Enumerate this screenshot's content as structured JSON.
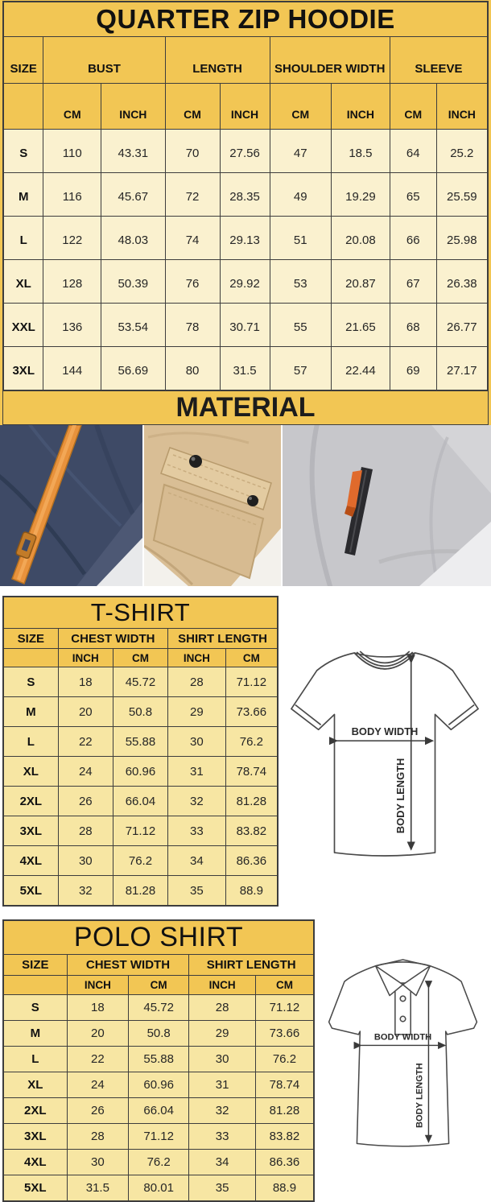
{
  "hoodie": {
    "title": "QUARTER ZIP HOODIE",
    "size_col_label": "SIZE",
    "groups": [
      "BUST",
      "LENGTH",
      "SHOULDER WIDTH",
      "SLEEVE"
    ],
    "units": [
      "CM",
      "INCH",
      "CM",
      "INCH",
      "CM",
      "INCH",
      "CM",
      "INCH"
    ],
    "rows": [
      {
        "size": "S",
        "cells": [
          "110",
          "43.31",
          "70",
          "27.56",
          "47",
          "18.5",
          "64",
          "25.2"
        ]
      },
      {
        "size": "M",
        "cells": [
          "116",
          "45.67",
          "72",
          "28.35",
          "49",
          "19.29",
          "65",
          "25.59"
        ]
      },
      {
        "size": "L",
        "cells": [
          "122",
          "48.03",
          "74",
          "29.13",
          "51",
          "20.08",
          "66",
          "25.98"
        ]
      },
      {
        "size": "XL",
        "cells": [
          "128",
          "50.39",
          "76",
          "29.92",
          "53",
          "20.87",
          "67",
          "26.38"
        ]
      },
      {
        "size": "XXL",
        "cells": [
          "136",
          "53.54",
          "78",
          "30.71",
          "55",
          "21.65",
          "68",
          "26.77"
        ]
      },
      {
        "size": "3XL",
        "cells": [
          "144",
          "56.69",
          "80",
          "31.5",
          "57",
          "22.44",
          "69",
          "27.17"
        ]
      }
    ]
  },
  "material": {
    "title": "MATERIAL",
    "photos": [
      {
        "name": "navy fleece with orange drawstring"
      },
      {
        "name": "khaki sleeve flap pocket with snaps"
      },
      {
        "name": "gray fleece with zip pocket and orange pull"
      }
    ]
  },
  "tshirt": {
    "title": "T-SHIRT",
    "size_col_label": "SIZE",
    "groups": [
      "CHEST WIDTH",
      "SHIRT LENGTH"
    ],
    "units": [
      "INCH",
      "CM",
      "INCH",
      "CM"
    ],
    "rows": [
      {
        "size": "S",
        "cells": [
          "18",
          "45.72",
          "28",
          "71.12"
        ]
      },
      {
        "size": "M",
        "cells": [
          "20",
          "50.8",
          "29",
          "73.66"
        ]
      },
      {
        "size": "L",
        "cells": [
          "22",
          "55.88",
          "30",
          "76.2"
        ]
      },
      {
        "size": "XL",
        "cells": [
          "24",
          "60.96",
          "31",
          "78.74"
        ]
      },
      {
        "size": "2XL",
        "cells": [
          "26",
          "66.04",
          "32",
          "81.28"
        ]
      },
      {
        "size": "3XL",
        "cells": [
          "28",
          "71.12",
          "33",
          "83.82"
        ]
      },
      {
        "size": "4XL",
        "cells": [
          "30",
          "76.2",
          "34",
          "86.36"
        ]
      },
      {
        "size": "5XL",
        "cells": [
          "32",
          "81.28",
          "35",
          "88.9"
        ]
      }
    ],
    "diagram": {
      "width_label": "BODY WIDTH",
      "length_label": "BODY LENGTH"
    }
  },
  "polo": {
    "title": "POLO SHIRT",
    "size_col_label": "SIZE",
    "groups": [
      "CHEST WIDTH",
      "SHIRT LENGTH"
    ],
    "units": [
      "INCH",
      "CM",
      "INCH",
      "CM"
    ],
    "rows": [
      {
        "size": "S",
        "cells": [
          "18",
          "45.72",
          "28",
          "71.12"
        ]
      },
      {
        "size": "M",
        "cells": [
          "20",
          "50.8",
          "29",
          "73.66"
        ]
      },
      {
        "size": "L",
        "cells": [
          "22",
          "55.88",
          "30",
          "76.2"
        ]
      },
      {
        "size": "XL",
        "cells": [
          "24",
          "60.96",
          "31",
          "78.74"
        ]
      },
      {
        "size": "2XL",
        "cells": [
          "26",
          "66.04",
          "32",
          "81.28"
        ]
      },
      {
        "size": "3XL",
        "cells": [
          "28",
          "71.12",
          "33",
          "83.82"
        ]
      },
      {
        "size": "4XL",
        "cells": [
          "30",
          "76.2",
          "34",
          "86.36"
        ]
      },
      {
        "size": "5XL",
        "cells": [
          "31.5",
          "80.01",
          "35",
          "88.9"
        ]
      }
    ],
    "diagram": {
      "width_label": "BODY WIDTH",
      "length_label": "BODY LENGTH"
    }
  },
  "colors": {
    "gold": "#F2C654",
    "cream": "#FAF1CF",
    "rowgold": "#F7E6A3",
    "border": "#3D3D3D",
    "ink": "#1C1C1C",
    "orange": "#E8923C"
  }
}
